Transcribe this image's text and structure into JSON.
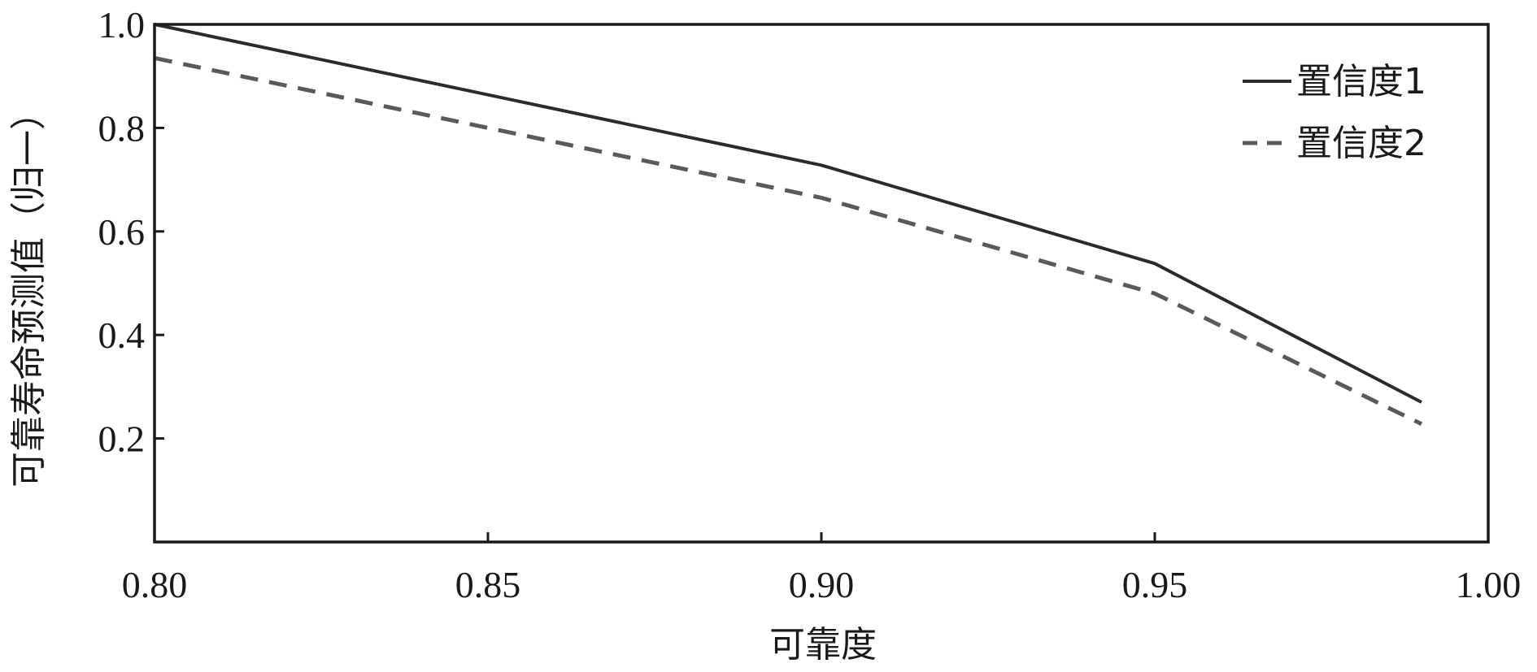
{
  "chart_data": {
    "type": "line",
    "title": "",
    "xlabel": "可靠度",
    "ylabel": "可靠寿命预测值（归一）",
    "xlim": [
      0.8,
      1.0
    ],
    "ylim": [
      0.0,
      1.0
    ],
    "x_ticks": [
      0.8,
      0.85,
      0.9,
      0.95,
      1.0
    ],
    "x_tick_labels": [
      "0.80",
      "0.85",
      "0.90",
      "0.95",
      "1.00"
    ],
    "y_ticks": [
      0.2,
      0.4,
      0.6,
      0.8,
      1.0
    ],
    "y_tick_labels": [
      "0.2",
      "0.4",
      "0.6",
      "0.8",
      "1.0"
    ],
    "grid": false,
    "legend_position": "top-right",
    "series": [
      {
        "name": "置信度1",
        "style": "solid",
        "color": "#2b2b2b",
        "x": [
          0.8,
          0.9,
          0.95,
          0.99
        ],
        "y": [
          1.0,
          0.728,
          0.538,
          0.27
        ]
      },
      {
        "name": "置信度2",
        "style": "dashed",
        "color": "#5a5a5a",
        "x": [
          0.8,
          0.9,
          0.95,
          0.99
        ],
        "y": [
          0.935,
          0.665,
          0.48,
          0.228
        ]
      }
    ]
  }
}
